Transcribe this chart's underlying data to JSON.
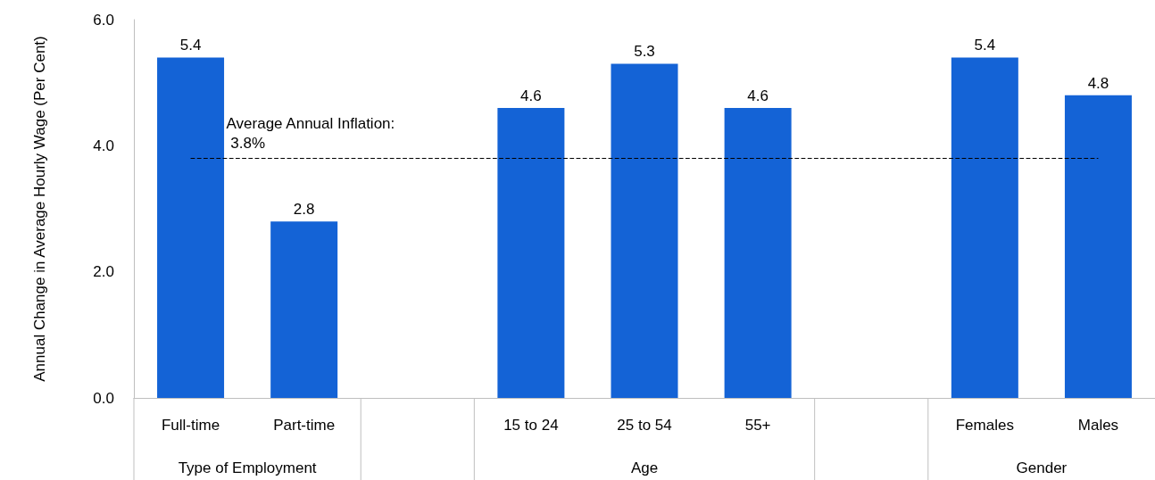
{
  "chart_data": {
    "type": "bar",
    "ylabel": "Annual Change in Average Hourly Wage (Per Cent)",
    "categories": [
      "Full-time",
      "Part-time",
      null,
      "15 to 24",
      "25 to 54",
      "55+",
      null,
      "Females",
      "Males"
    ],
    "values": [
      5.4,
      2.8,
      null,
      4.6,
      5.3,
      4.6,
      null,
      5.4,
      4.8
    ],
    "color": "#1463d6",
    "ylim": [
      0,
      6
    ],
    "yticks": [
      {
        "value": 0,
        "label": "0.0"
      },
      {
        "value": 2,
        "label": "2.0"
      },
      {
        "value": 4,
        "label": "4.0"
      },
      {
        "value": 6,
        "label": "6.0"
      }
    ],
    "grid": false,
    "data_labels": true,
    "ref_lines": [
      {
        "axis": "y",
        "value": 3.8,
        "label": "Average Annual Inflation: 3.8%",
        "line_style": "dashed",
        "color": "#000000"
      }
    ],
    "annotations": [
      "Type of Employment",
      "Age",
      "Gender"
    ]
  }
}
